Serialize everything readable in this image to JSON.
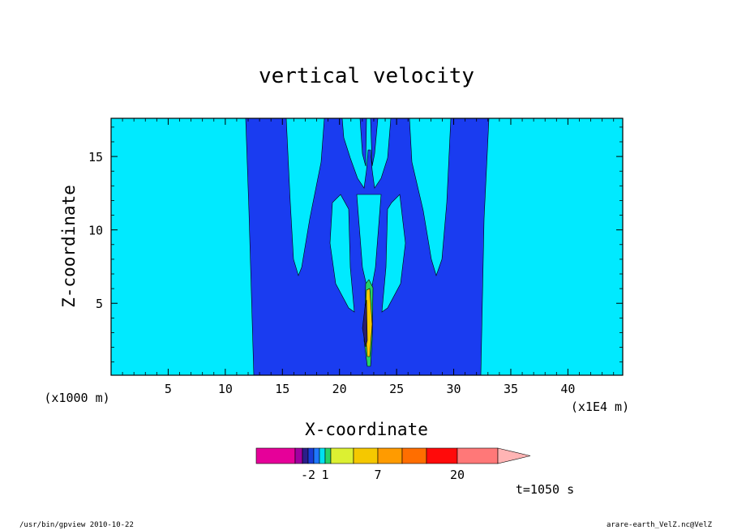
{
  "chart_data": {
    "type": "heatmap",
    "title": "vertical velocity",
    "xlabel": "X-coordinate",
    "ylabel": "Z-coordinate",
    "x_unit_label": "(x1E4 m)",
    "y_unit_label": "(x1000 m)",
    "xlim": [
      0,
      44.8
    ],
    "ylim": [
      0.1,
      17.6
    ],
    "x_ticks": [
      5,
      10,
      15,
      20,
      25,
      30,
      35,
      40
    ],
    "y_ticks": [
      5,
      10,
      15
    ],
    "time_label": "t=1050 s",
    "colorbar": {
      "colors": [
        "#e60099",
        "#a000a0",
        "#2b1e8a",
        "#1a3cd6",
        "#1e78ff",
        "#00e0f0",
        "#28d266",
        "#dcf032",
        "#f5c800",
        "#ff9b00",
        "#ff6e00",
        "#ff0a0a",
        "#ff7878",
        "#ffb4b4"
      ],
      "tick_labels": [
        "-2",
        "1",
        "7",
        "20"
      ],
      "tick_index": [
        3,
        6,
        9,
        12
      ]
    },
    "background_colors": {
      "low": "#00eaff",
      "mid": "#1a3cf0",
      "updraft": "#f5c800",
      "core": "#2b1e6a"
    }
  },
  "footer": {
    "left": "/usr/bin/gpview   2010-10-22",
    "right": "arare-earth_VelZ.nc@VelZ"
  }
}
